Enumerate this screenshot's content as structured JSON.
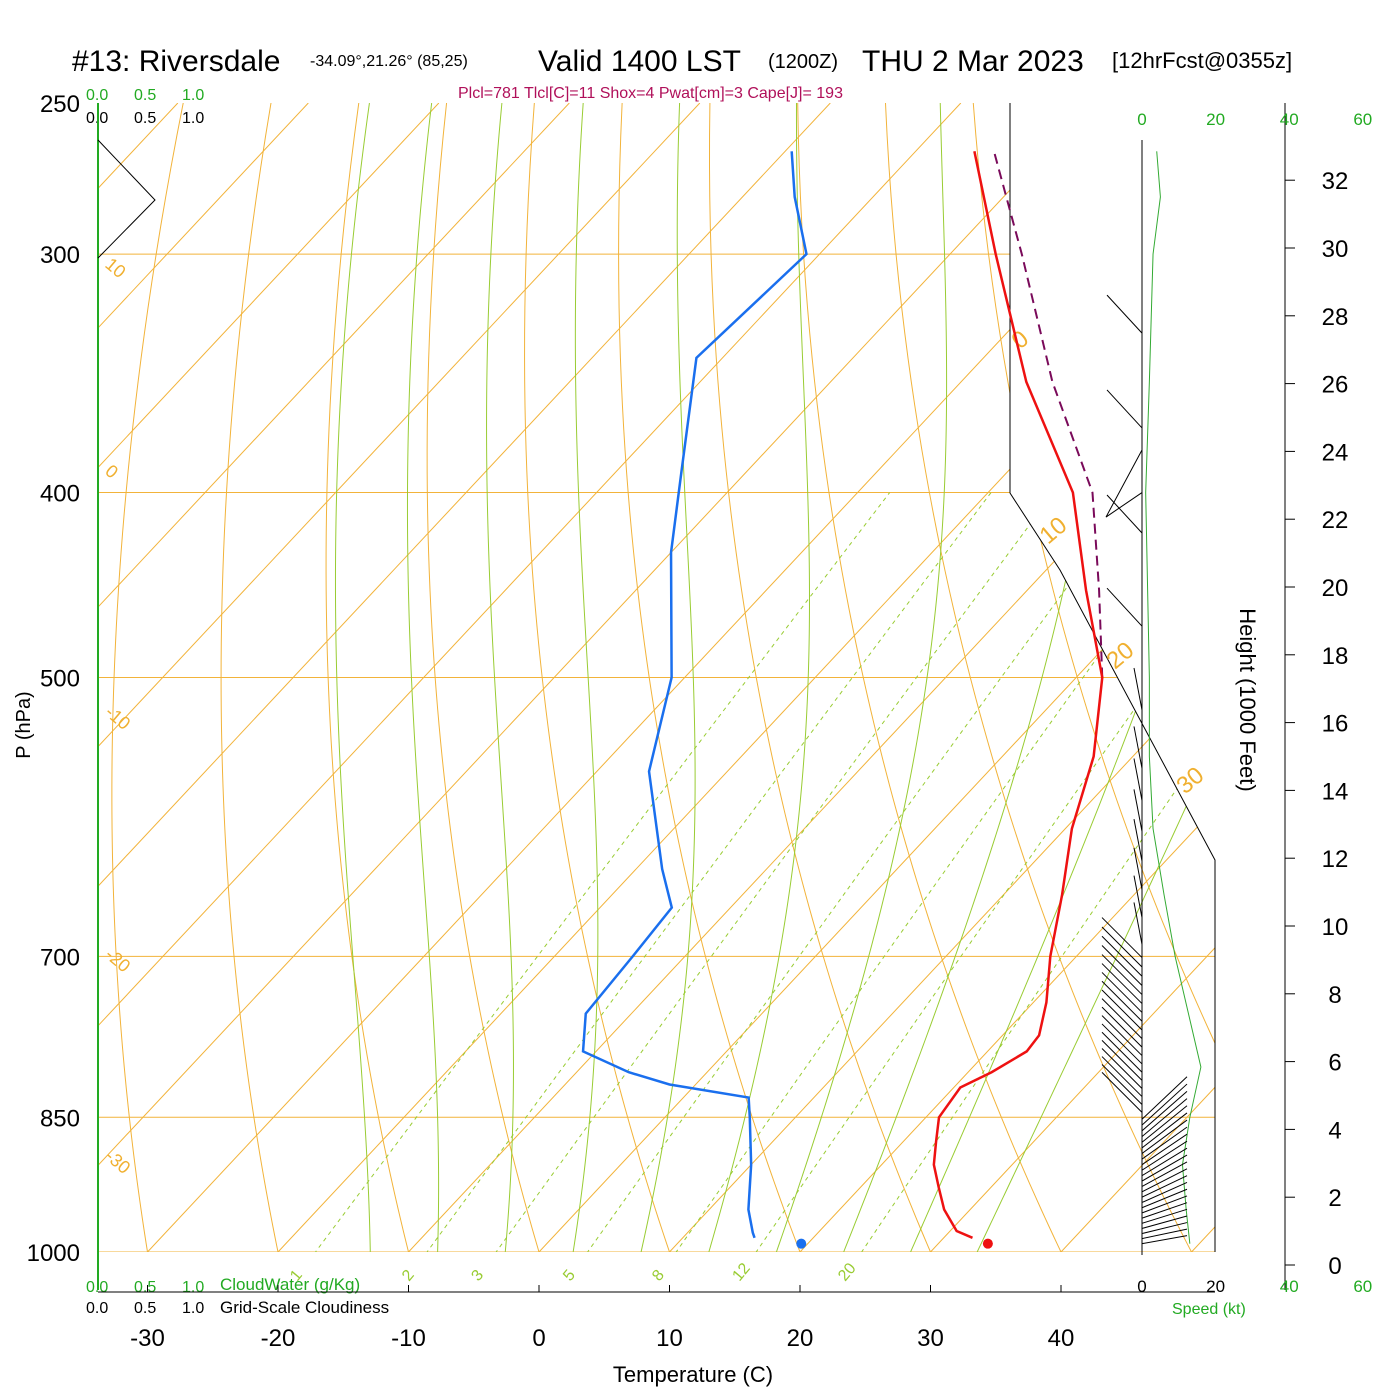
{
  "header": {
    "station": "#13: Riversdale",
    "coords": "-34.09°,21.26° (85,25)",
    "valid": "Valid 1400 LST",
    "zulu": "(1200Z)",
    "date": "THU 2 Mar 2023",
    "forecast": "[12hrFcst@0355z]",
    "indices": "Plcl=781 Tlcl[C]=11 Shox=4 Pwat[cm]=3 Cape[J]= 193"
  },
  "cloud_scale": {
    "green_ticks": [
      "0.0",
      "0.5",
      "1.0"
    ],
    "black_ticks": [
      "0.0",
      "0.5",
      "1.0"
    ],
    "cloudwater_label": "CloudWater (g/Kg)",
    "cloudiness_label": "Grid-Scale Cloudiness"
  },
  "colors": {
    "temperature": "#ee1111",
    "dewpoint": "#1a6fee",
    "parcel": "#7a0a5a",
    "isotherm": "#f2b33a",
    "isobar": "#f2b33a",
    "mixing_ratio": "#99cc33",
    "moist_adiabat": "#99cc33",
    "dry_adiabat": "#f2b33a",
    "speed_profile": "#33aa33",
    "wind_barb": "#000000",
    "cloud_scale": "#22aa22"
  },
  "chart_data": {
    "type": "skew-t",
    "xlabel": "Temperature (C)",
    "ylabel": "P (hPa)",
    "right_ylabel": "Height (1000 Feet)",
    "x_ticks": [
      -30,
      -20,
      -10,
      0,
      10,
      20,
      30,
      40
    ],
    "p_ticks": [
      250,
      300,
      400,
      500,
      700,
      850,
      1000
    ],
    "height_ticks": [
      0,
      2,
      4,
      6,
      8,
      10,
      12,
      14,
      16,
      18,
      20,
      22,
      24,
      26,
      28,
      30,
      32
    ],
    "isotherm_labels": [
      10,
      0,
      -10,
      -20,
      -30
    ],
    "isotherm_labels_right": [
      0,
      10,
      20,
      30
    ],
    "mixing_ratio_labels": [
      "1",
      "2",
      "3",
      "5",
      "8",
      "12",
      "20"
    ],
    "mixing_ratios": [
      1,
      2,
      3,
      5,
      8,
      12,
      20
    ],
    "speed_axis": {
      "label": "Speed (kt)",
      "ticks_bottom": [
        0,
        20,
        40,
        60
      ],
      "ticks_top": [
        0,
        20,
        40,
        60
      ]
    },
    "surface_temp": 33.8,
    "surface_dewpoint": 19.5,
    "surface_pressure": 990,
    "temperature": [
      [
        983,
        32.2
      ],
      [
        975,
        30.5
      ],
      [
        950,
        28.0
      ],
      [
        925,
        26.0
      ],
      [
        900,
        24.0
      ],
      [
        875,
        22.5
      ],
      [
        850,
        21.0
      ],
      [
        820,
        20.5
      ],
      [
        805,
        21.8
      ],
      [
        785,
        23.0
      ],
      [
        770,
        22.8
      ],
      [
        740,
        21.0
      ],
      [
        700,
        18.0
      ],
      [
        650,
        14.5
      ],
      [
        600,
        10.5
      ],
      [
        550,
        7.0
      ],
      [
        500,
        2.0
      ],
      [
        450,
        -5.5
      ],
      [
        400,
        -13.5
      ],
      [
        350,
        -25.0
      ],
      [
        300,
        -36.5
      ],
      [
        265,
        -45.5
      ]
    ],
    "dewpoint": [
      [
        983,
        15.5
      ],
      [
        977,
        15.0
      ],
      [
        950,
        13.0
      ],
      [
        900,
        10.0
      ],
      [
        850,
        6.5
      ],
      [
        830,
        5.0
      ],
      [
        817,
        -2.0
      ],
      [
        805,
        -6.0
      ],
      [
        785,
        -11.0
      ],
      [
        750,
        -13.5
      ],
      [
        700,
        -14.0
      ],
      [
        660,
        -14.5
      ],
      [
        630,
        -18.0
      ],
      [
        560,
        -26.0
      ],
      [
        500,
        -31.0
      ],
      [
        430,
        -40.0
      ],
      [
        390,
        -45.0
      ],
      [
        340,
        -52.0
      ],
      [
        300,
        -51.0
      ],
      [
        280,
        -56.0
      ],
      [
        265,
        -59.5
      ]
    ],
    "parcel": [
      [
        500,
        2.0
      ],
      [
        450,
        -4.5
      ],
      [
        400,
        -12.0
      ],
      [
        350,
        -23.0
      ],
      [
        300,
        -34.5
      ],
      [
        265,
        -44.0
      ]
    ],
    "wind_speed_kt": [
      [
        990,
        13
      ],
      [
        950,
        12
      ],
      [
        900,
        11
      ],
      [
        850,
        13
      ],
      [
        800,
        16
      ],
      [
        770,
        14
      ],
      [
        700,
        9
      ],
      [
        650,
        6
      ],
      [
        600,
        3
      ],
      [
        550,
        2
      ],
      [
        500,
        2
      ],
      [
        400,
        1
      ],
      [
        350,
        2
      ],
      [
        300,
        3
      ],
      [
        280,
        5
      ],
      [
        265,
        4
      ]
    ]
  }
}
